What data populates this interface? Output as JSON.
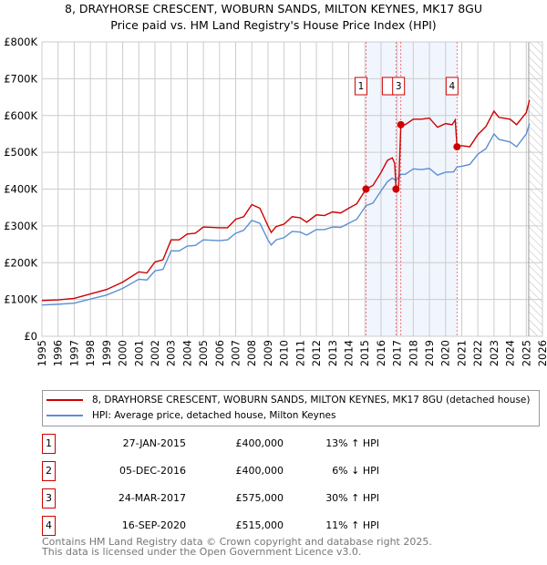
{
  "chart_data": {
    "type": "line",
    "title": "8, DRAYHORSE CRESCENT, WOBURN SANDS, MILTON KEYNES, MK17 8GU",
    "subtitle": "Price paid vs. HM Land Registry's House Price Index (HPI)",
    "xlim": [
      1995,
      2026
    ],
    "ylim": [
      0,
      800000
    ],
    "y_ticks": [
      {
        "v": 0,
        "label": "£0"
      },
      {
        "v": 100000,
        "label": "£100K"
      },
      {
        "v": 200000,
        "label": "£200K"
      },
      {
        "v": 300000,
        "label": "£300K"
      },
      {
        "v": 400000,
        "label": "£400K"
      },
      {
        "v": 500000,
        "label": "£500K"
      },
      {
        "v": 600000,
        "label": "£600K"
      },
      {
        "v": 700000,
        "label": "£700K"
      },
      {
        "v": 800000,
        "label": "£800K"
      }
    ],
    "x_ticks": [
      "1995",
      "1996",
      "1997",
      "1998",
      "1999",
      "2000",
      "2001",
      "2002",
      "2003",
      "2004",
      "2005",
      "2006",
      "2007",
      "2008",
      "2009",
      "2010",
      "2011",
      "2012",
      "2013",
      "2014",
      "2015",
      "2016",
      "2017",
      "2018",
      "2019",
      "2020",
      "2021",
      "2022",
      "2023",
      "2024",
      "2025",
      "2026"
    ],
    "grid": true,
    "series": [
      {
        "name": "8, DRAYHORSE CRESCENT, WOBURN SANDS, MILTON KEYNES, MK17 8GU (detached house)",
        "color": "#cc0000",
        "points": [
          [
            1995,
            97000
          ],
          [
            1996,
            99000
          ],
          [
            1997,
            103000
          ],
          [
            1998,
            115000
          ],
          [
            1999,
            127000
          ],
          [
            2000,
            147000
          ],
          [
            2001,
            175000
          ],
          [
            2001.5,
            172000
          ],
          [
            2002,
            202000
          ],
          [
            2002.5,
            208000
          ],
          [
            2003,
            262000
          ],
          [
            2003.5,
            262000
          ],
          [
            2004,
            278000
          ],
          [
            2004.5,
            280000
          ],
          [
            2005,
            297000
          ],
          [
            2006,
            295000
          ],
          [
            2006.5,
            295000
          ],
          [
            2007,
            318000
          ],
          [
            2007.5,
            325000
          ],
          [
            2008,
            358000
          ],
          [
            2008.5,
            348000
          ],
          [
            2009,
            300000
          ],
          [
            2009.2,
            282000
          ],
          [
            2009.5,
            298000
          ],
          [
            2010,
            305000
          ],
          [
            2010.5,
            325000
          ],
          [
            2011,
            322000
          ],
          [
            2011.4,
            310000
          ],
          [
            2012,
            330000
          ],
          [
            2012.5,
            328000
          ],
          [
            2013,
            338000
          ],
          [
            2013.5,
            335000
          ],
          [
            2014,
            348000
          ],
          [
            2014.5,
            360000
          ],
          [
            2015.07,
            400000
          ],
          [
            2015.5,
            410000
          ],
          [
            2016,
            445000
          ],
          [
            2016.4,
            478000
          ],
          [
            2016.7,
            485000
          ],
          [
            2016.85,
            470000
          ],
          [
            2016.93,
            400000
          ],
          [
            2017.1,
            410000
          ],
          [
            2017.23,
            575000
          ],
          [
            2017.5,
            575000
          ],
          [
            2018,
            590000
          ],
          [
            2018.5,
            590000
          ],
          [
            2019,
            593000
          ],
          [
            2019.5,
            568000
          ],
          [
            2020,
            578000
          ],
          [
            2020.4,
            575000
          ],
          [
            2020.6,
            588000
          ],
          [
            2020.71,
            515000
          ],
          [
            2021,
            518000
          ],
          [
            2021.5,
            515000
          ],
          [
            2022,
            548000
          ],
          [
            2022.5,
            570000
          ],
          [
            2023,
            612000
          ],
          [
            2023.3,
            595000
          ],
          [
            2024,
            590000
          ],
          [
            2024.4,
            575000
          ],
          [
            2025,
            608000
          ],
          [
            2025.2,
            642000
          ]
        ]
      },
      {
        "name": "HPI: Average price, detached house, Milton Keynes",
        "color": "#5b8fd4",
        "points": [
          [
            1995,
            85000
          ],
          [
            1996,
            87000
          ],
          [
            1997,
            90000
          ],
          [
            1998,
            101000
          ],
          [
            1999,
            112000
          ],
          [
            2000,
            130000
          ],
          [
            2001,
            155000
          ],
          [
            2001.5,
            153000
          ],
          [
            2002,
            178000
          ],
          [
            2002.5,
            182000
          ],
          [
            2003,
            232000
          ],
          [
            2003.5,
            232000
          ],
          [
            2004,
            245000
          ],
          [
            2004.5,
            247000
          ],
          [
            2005,
            262000
          ],
          [
            2006,
            260000
          ],
          [
            2006.5,
            262000
          ],
          [
            2007,
            280000
          ],
          [
            2007.5,
            288000
          ],
          [
            2008,
            315000
          ],
          [
            2008.5,
            307000
          ],
          [
            2009,
            262000
          ],
          [
            2009.2,
            248000
          ],
          [
            2009.5,
            262000
          ],
          [
            2010,
            268000
          ],
          [
            2010.5,
            285000
          ],
          [
            2011,
            283000
          ],
          [
            2011.4,
            275000
          ],
          [
            2012,
            290000
          ],
          [
            2012.5,
            290000
          ],
          [
            2013,
            297000
          ],
          [
            2013.5,
            296000
          ],
          [
            2014,
            307000
          ],
          [
            2014.5,
            318000
          ],
          [
            2015.07,
            355000
          ],
          [
            2015.5,
            362000
          ],
          [
            2016,
            395000
          ],
          [
            2016.4,
            420000
          ],
          [
            2016.7,
            430000
          ],
          [
            2016.93,
            423000
          ],
          [
            2017.23,
            440000
          ],
          [
            2017.5,
            440000
          ],
          [
            2018,
            455000
          ],
          [
            2018.5,
            453000
          ],
          [
            2019,
            456000
          ],
          [
            2019.5,
            438000
          ],
          [
            2020,
            446000
          ],
          [
            2020.5,
            447000
          ],
          [
            2020.71,
            460000
          ],
          [
            2021,
            462000
          ],
          [
            2021.5,
            467000
          ],
          [
            2022,
            495000
          ],
          [
            2022.5,
            510000
          ],
          [
            2023,
            550000
          ],
          [
            2023.3,
            535000
          ],
          [
            2024,
            528000
          ],
          [
            2024.4,
            515000
          ],
          [
            2025,
            550000
          ],
          [
            2025.2,
            578000
          ]
        ]
      }
    ],
    "sales": [
      {
        "n": "1",
        "x": 2015.07,
        "y": 400000,
        "date": "27-JAN-2015",
        "price": "£400,000",
        "hpi": "13% ↑ HPI"
      },
      {
        "n": "2",
        "x": 2016.93,
        "y": 400000,
        "date": "05-DEC-2016",
        "price": "£400,000",
        "hpi": "6% ↓ HPI"
      },
      {
        "n": "3",
        "x": 2017.23,
        "y": 575000,
        "date": "24-MAR-2017",
        "price": "£575,000",
        "hpi": "30% ↑ HPI"
      },
      {
        "n": "4",
        "x": 2020.71,
        "y": 515000,
        "date": "16-SEP-2020",
        "price": "£515,000",
        "hpi": "11% ↑ HPI"
      }
    ],
    "forecast_start": 2025.15
  },
  "legend": {
    "red": "8, DRAYHORSE CRESCENT, WOBURN SANDS, MILTON KEYNES, MK17 8GU (detached house)",
    "blue": "HPI: Average price, detached house, Milton Keynes"
  },
  "footer": {
    "line1": "Contains HM Land Registry data © Crown copyright and database right 2025.",
    "line2": "This data is licensed under the Open Government Licence v3.0."
  }
}
